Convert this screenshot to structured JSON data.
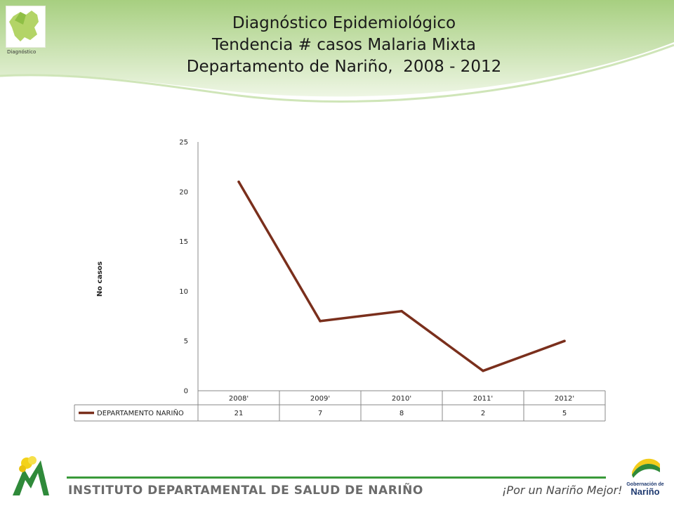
{
  "header": {
    "title_lines": [
      "Diagnóstico Epidemiológico",
      "Tendencia # casos Malaria Mixta",
      "Departamento de Nariño,  2008 - 2012"
    ],
    "logo_caption": "Diagnóstico"
  },
  "footer": {
    "institute": "INSTITUTO DEPARTAMENTAL DE SALUD DE NARIÑO",
    "slogan": "¡Por un Nariño Mejor!",
    "gob_label": "Gobernación de",
    "gob_name": "Nariño"
  },
  "colors": {
    "series_line": "#7a2f1c",
    "header_green": "#a7cf80",
    "footer_green": "#3a9a3a"
  },
  "chart_data": {
    "type": "line",
    "ylabel": "No casos",
    "ylim": [
      0,
      25
    ],
    "yticks": [
      "0",
      "5",
      "10",
      "15",
      "20",
      "25"
    ],
    "categories": [
      "2008'",
      "2009'",
      "2010'",
      "2011'",
      "2012'"
    ],
    "series": [
      {
        "name": "DEPARTAMENTO NARIÑO",
        "values": [
          21,
          7,
          8,
          2,
          5
        ]
      }
    ],
    "data_table": true,
    "grid": false
  }
}
